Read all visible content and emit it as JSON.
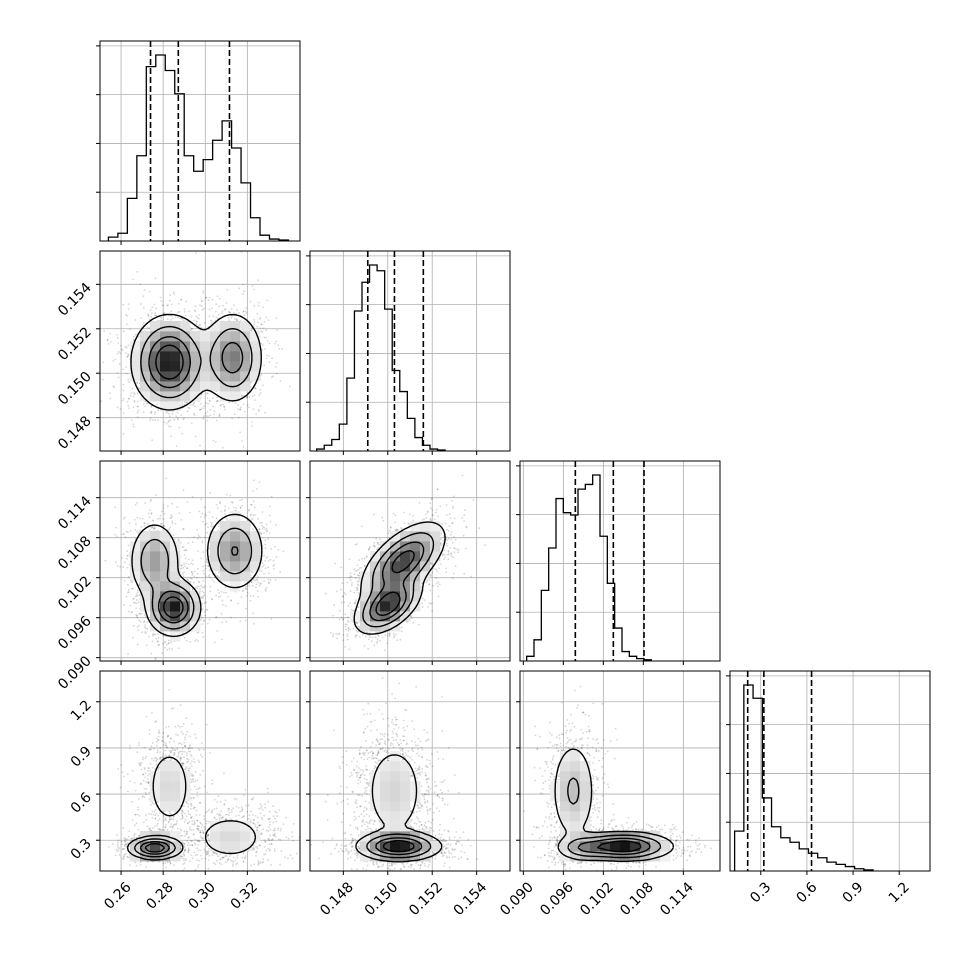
{
  "chart_data": {
    "type": "corner",
    "contour_colour": "#000000",
    "scatter_colour": "#000000",
    "grid": true,
    "quantile_line_style": "dashed",
    "parameters": [
      {
        "range": [
          0.25,
          0.345
        ],
        "ticks": [
          0.26,
          0.28,
          0.3,
          0.32
        ],
        "tick_labels": [
          "0.26",
          "0.28",
          "0.30",
          "0.32"
        ]
      },
      {
        "range": [
          0.1465,
          0.1555
        ],
        "ticks": [
          0.148,
          0.15,
          0.152,
          0.154
        ],
        "tick_labels": [
          "0.148",
          "0.150",
          "0.152",
          "0.154"
        ]
      },
      {
        "range": [
          0.0895,
          0.1195
        ],
        "ticks": [
          0.09,
          0.096,
          0.102,
          0.108,
          0.114
        ],
        "tick_labels": [
          "0.090",
          "0.096",
          "0.102",
          "0.108",
          "0.114"
        ]
      },
      {
        "range": [
          0.1,
          1.4
        ],
        "ticks": [
          0.3,
          0.6,
          0.9,
          1.2
        ],
        "tick_labels": [
          "0.3",
          "0.6",
          "0.9",
          "1.2"
        ]
      }
    ],
    "histograms": [
      {
        "parameter": 0,
        "bin_edges_start": 0.254,
        "bin_width": 0.0045,
        "counts": [
          0.02,
          0.04,
          0.22,
          0.44,
          0.9,
          0.96,
          0.88,
          0.76,
          0.44,
          0.36,
          0.42,
          0.52,
          0.62,
          0.48,
          0.3,
          0.12,
          0.03,
          0.01,
          0.005
        ],
        "quantiles": [
          0.274,
          0.2872,
          0.3115
        ]
      },
      {
        "parameter": 1,
        "bin_edges_start": 0.1468,
        "bin_width": 0.00034,
        "counts": [
          0.01,
          0.03,
          0.06,
          0.14,
          0.38,
          0.73,
          0.88,
          0.97,
          0.94,
          0.74,
          0.42,
          0.31,
          0.17,
          0.07,
          0.03,
          0.01,
          0.005
        ],
        "quantiles": [
          0.1491,
          0.1503,
          0.1516
        ]
      },
      {
        "parameter": 2,
        "bin_edges_start": 0.0905,
        "bin_width": 0.0011,
        "counts": [
          0.02,
          0.09,
          0.3,
          0.48,
          0.69,
          0.63,
          0.62,
          0.73,
          0.75,
          0.79,
          0.53,
          0.33,
          0.14,
          0.04,
          0.02,
          0.01,
          0.005
        ],
        "quantiles": [
          0.0978,
          0.1035,
          0.1081
        ]
      },
      {
        "parameter": 3,
        "bin_edges_start": 0.13,
        "bin_width": 0.06,
        "counts": [
          0.18,
          0.84,
          0.78,
          0.33,
          0.2,
          0.15,
          0.13,
          0.1,
          0.08,
          0.06,
          0.04,
          0.03,
          0.02,
          0.01,
          0.005
        ],
        "quantiles": [
          0.215,
          0.32,
          0.63
        ]
      }
    ],
    "pair_modes": [
      {
        "x": 0,
        "y": 1,
        "modes": [
          {
            "mx": 0.283,
            "my": 0.1505,
            "sx": 0.0085,
            "sy": 0.001,
            "w": 0.65
          },
          {
            "mx": 0.313,
            "my": 0.1507,
            "sx": 0.007,
            "sy": 0.001,
            "w": 0.35
          }
        ]
      },
      {
        "x": 0,
        "y": 2,
        "modes": [
          {
            "mx": 0.276,
            "my": 0.1045,
            "sx": 0.006,
            "sy": 0.003,
            "w": 0.28
          },
          {
            "mx": 0.285,
            "my": 0.0975,
            "sx": 0.006,
            "sy": 0.002,
            "w": 0.37
          },
          {
            "mx": 0.314,
            "my": 0.106,
            "sx": 0.007,
            "sy": 0.003,
            "w": 0.35
          }
        ]
      },
      {
        "x": 1,
        "y": 2,
        "modes": [
          {
            "mx": 0.15,
            "my": 0.0978,
            "sx": 0.0007,
            "sy": 0.002,
            "w": 0.4,
            "rho": 0.5
          },
          {
            "mx": 0.1507,
            "my": 0.1045,
            "sx": 0.0009,
            "sy": 0.0028,
            "w": 0.6,
            "rho": 0.6
          }
        ]
      },
      {
        "x": 0,
        "y": 3,
        "modes": [
          {
            "mx": 0.276,
            "my": 0.25,
            "sx": 0.006,
            "sy": 0.035,
            "w": 0.35
          },
          {
            "mx": 0.283,
            "my": 0.65,
            "sx": 0.0065,
            "sy": 0.16,
            "w": 0.35
          },
          {
            "mx": 0.312,
            "my": 0.32,
            "sx": 0.01,
            "sy": 0.09,
            "w": 0.3
          }
        ]
      },
      {
        "x": 1,
        "y": 3,
        "modes": [
          {
            "mx": 0.1505,
            "my": 0.26,
            "sx": 0.0009,
            "sy": 0.045,
            "w": 0.55
          },
          {
            "mx": 0.1503,
            "my": 0.62,
            "sx": 0.0008,
            "sy": 0.19,
            "w": 0.45
          }
        ]
      },
      {
        "x": 2,
        "y": 3,
        "modes": [
          {
            "mx": 0.0975,
            "my": 0.62,
            "sx": 0.0018,
            "sy": 0.18,
            "w": 0.35
          },
          {
            "mx": 0.105,
            "my": 0.26,
            "sx": 0.0035,
            "sy": 0.045,
            "w": 0.55
          },
          {
            "mx": 0.099,
            "my": 0.25,
            "sx": 0.002,
            "sy": 0.04,
            "w": 0.1
          }
        ]
      }
    ]
  }
}
